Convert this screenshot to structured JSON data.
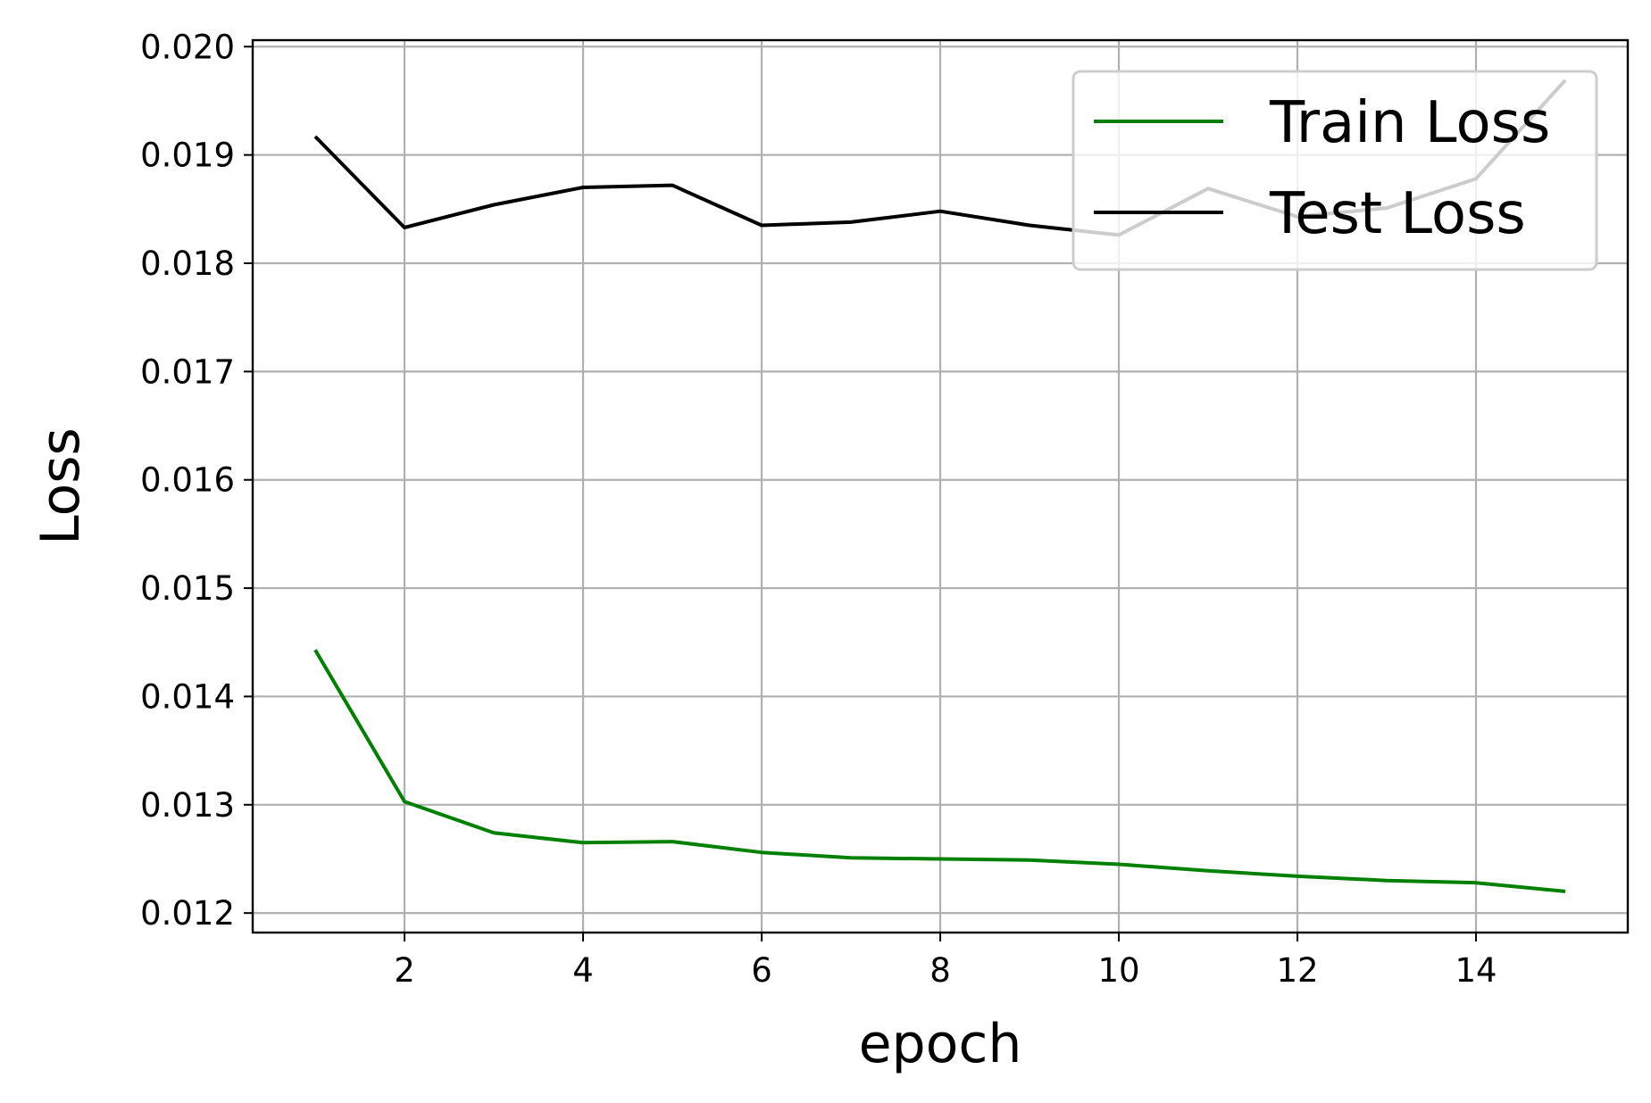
{
  "chart_data": {
    "type": "line",
    "title": "",
    "xlabel": "epoch",
    "ylabel": "Loss",
    "x": [
      1,
      2,
      3,
      4,
      5,
      6,
      7,
      8,
      9,
      10,
      11,
      12,
      13,
      14,
      15
    ],
    "xlim": [
      0.3,
      15.7
    ],
    "ylim": [
      0.01182,
      0.02006
    ],
    "xticks": [
      2,
      4,
      6,
      8,
      10,
      12,
      14
    ],
    "xtick_labels": [
      "2",
      "4",
      "6",
      "8",
      "10",
      "12",
      "14"
    ],
    "yticks": [
      0.012,
      0.013,
      0.014,
      0.015,
      0.016,
      0.017,
      0.018,
      0.019,
      0.02
    ],
    "ytick_labels": [
      "0.012",
      "0.013",
      "0.014",
      "0.015",
      "0.016",
      "0.017",
      "0.018",
      "0.019",
      "0.020"
    ],
    "grid": true,
    "legend_position": "upper-right",
    "series": [
      {
        "name": "Train Loss",
        "color": "#008000",
        "values": [
          0.01443,
          0.01303,
          0.01274,
          0.01265,
          0.01266,
          0.01256,
          0.01251,
          0.0125,
          0.01249,
          0.01245,
          0.01239,
          0.01234,
          0.0123,
          0.01228,
          0.0122
        ]
      },
      {
        "name": "Test Loss",
        "color": "#000000",
        "values": [
          0.01917,
          0.01833,
          0.01854,
          0.0187,
          0.01872,
          0.01835,
          0.01838,
          0.01848,
          0.01835,
          0.01826,
          0.01869,
          0.01843,
          0.01851,
          0.01878,
          0.01969
        ]
      }
    ]
  }
}
